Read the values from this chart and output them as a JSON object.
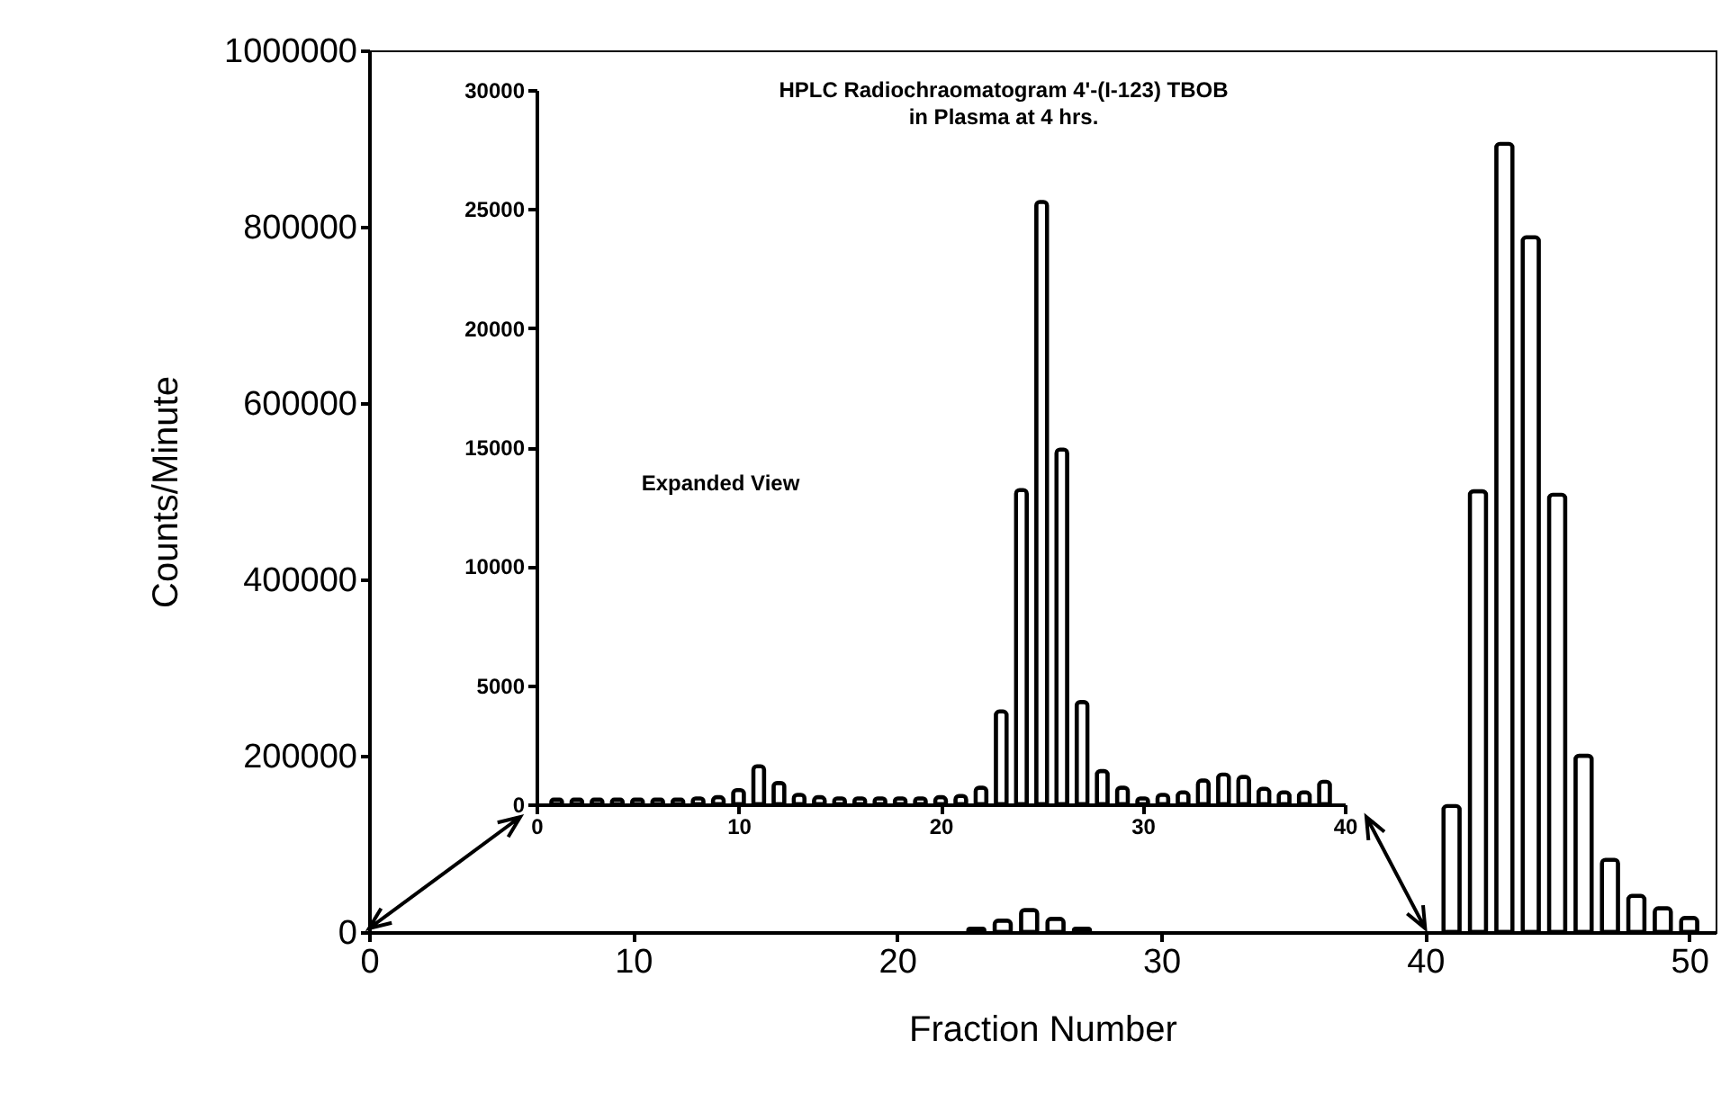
{
  "chart_data": [
    {
      "type": "bar",
      "xlabel": "Fraction Number",
      "ylabel": "Counts/Minute",
      "color": "#000000",
      "x": [
        23,
        24,
        25,
        26,
        27,
        41,
        42,
        43,
        44,
        45,
        46,
        47,
        48,
        49,
        50
      ],
      "values": [
        4000,
        13000,
        25000,
        15000,
        4000,
        143000,
        500000,
        894000,
        788000,
        496000,
        200000,
        82000,
        41000,
        27000,
        16000
      ],
      "xlim": [
        0,
        51
      ],
      "xticks": [
        0,
        10,
        20,
        30,
        40,
        50
      ],
      "ylim": [
        0,
        1000000
      ],
      "yticks": [
        0,
        200000,
        400000,
        600000,
        800000,
        1000000
      ]
    },
    {
      "type": "bar",
      "title": "HPLC Radiochraomatogram 4'-(I-123) TBOB",
      "subtitle": "in Plasma at 4 hrs.",
      "color": "#000000",
      "x": [
        1,
        2,
        3,
        4,
        5,
        6,
        7,
        8,
        9,
        10,
        11,
        12,
        13,
        14,
        15,
        16,
        17,
        18,
        19,
        20,
        21,
        22,
        23,
        24,
        25,
        26,
        27,
        28,
        29,
        30,
        31,
        32,
        33,
        34,
        35,
        36,
        37,
        38,
        39
      ],
      "values": [
        200,
        200,
        200,
        200,
        200,
        200,
        200,
        250,
        300,
        600,
        1600,
        900,
        400,
        300,
        250,
        250,
        250,
        250,
        250,
        300,
        350,
        700,
        3900,
        13200,
        25300,
        14900,
        4300,
        1400,
        700,
        250,
        400,
        500,
        1000,
        1250,
        1150,
        650,
        500,
        500,
        950
      ],
      "xlim": [
        0,
        40
      ],
      "xticks": [
        0,
        10,
        20,
        30,
        40
      ],
      "ylim": [
        0,
        30000
      ],
      "yticks": [
        0,
        5000,
        10000,
        15000,
        20000,
        25000,
        30000
      ],
      "annotations": [
        "Expanded View"
      ]
    }
  ]
}
